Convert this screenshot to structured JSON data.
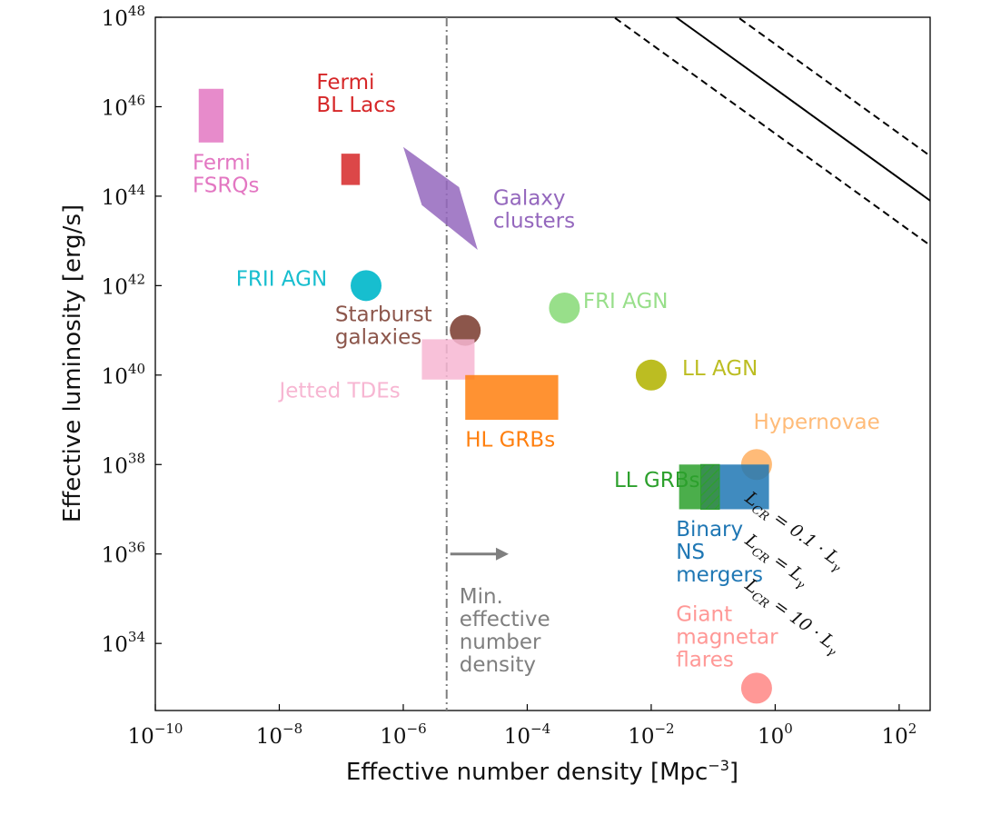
{
  "chart_data": {
    "type": "scatter",
    "xlabel": "Effective number density [Mpc",
    "xlabel_sup": "−3",
    "xlabel_end": "]",
    "ylabel": "Effective luminosity [erg/s]",
    "xscale": "log",
    "yscale": "log",
    "xlim_exp": [
      -10,
      2.5
    ],
    "ylim_exp": [
      32.5,
      48
    ],
    "x_ticks": [
      {
        "base": "10",
        "exp": "−10",
        "value": -10
      },
      {
        "base": "10",
        "exp": "−8",
        "value": -8
      },
      {
        "base": "10",
        "exp": "−6",
        "value": -6
      },
      {
        "base": "10",
        "exp": "−4",
        "value": -4
      },
      {
        "base": "10",
        "exp": "−2",
        "value": -2
      },
      {
        "base": "10",
        "exp": "0",
        "value": 0
      },
      {
        "base": "10",
        "exp": "2",
        "value": 2
      }
    ],
    "y_ticks": [
      {
        "base": "10",
        "exp": "34",
        "value": 34
      },
      {
        "base": "10",
        "exp": "36",
        "value": 36
      },
      {
        "base": "10",
        "exp": "38",
        "value": 38
      },
      {
        "base": "10",
        "exp": "40",
        "value": 40
      },
      {
        "base": "10",
        "exp": "42",
        "value": 42
      },
      {
        "base": "10",
        "exp": "44",
        "value": 44
      },
      {
        "base": "10",
        "exp": "46",
        "value": 46
      },
      {
        "base": "10",
        "exp": "48",
        "value": 48
      }
    ],
    "reference_lines": [
      {
        "label": "L",
        "sub": "CR",
        "rest": " = 0.1 · L",
        "rest_sub": "γ",
        "style": "dashed",
        "log_offset": 47.4,
        "label_at": [
          -0.5,
          37.2
        ]
      },
      {
        "label": "L",
        "sub": "CR",
        "rest": " = L",
        "rest_sub": "γ",
        "style": "solid",
        "log_offset": 46.4,
        "label_at": [
          -0.5,
          36.25
        ]
      },
      {
        "label": "L",
        "sub": "CR",
        "rest": " = 10 · L",
        "rest_sub": "γ",
        "style": "dashed",
        "log_offset": 45.4,
        "label_at": [
          -0.5,
          35.25
        ]
      }
    ],
    "min_density_line": {
      "x_exp": -5.3,
      "label_lines": [
        "Min.",
        "effective",
        "number",
        "density"
      ],
      "arrow_from": -5.3,
      "arrow_to": -4.3,
      "arrow_y": 36,
      "color": "#7f7f7f"
    },
    "sources": [
      {
        "name": "Fermi FSRQs",
        "label_lines": [
          "Fermi",
          "FSRQs"
        ],
        "shape": "rect",
        "x_exp": [
          -9.3,
          -8.9
        ],
        "y_exp": [
          45.2,
          46.4
        ],
        "color": "#e377c2",
        "label_at": [
          -9.4,
          44.6
        ]
      },
      {
        "name": "Fermi BL Lacs",
        "label_lines": [
          "Fermi",
          "BL Lacs"
        ],
        "shape": "rect",
        "x_exp": [
          -7.0,
          -6.7
        ],
        "y_exp": [
          44.25,
          44.95
        ],
        "color": "#d62728",
        "label_at": [
          -7.4,
          46.4
        ]
      },
      {
        "name": "Galaxy clusters",
        "label_lines": [
          "Galaxy",
          "clusters"
        ],
        "shape": "poly",
        "points": [
          [
            -6.0,
            45.1
          ],
          [
            -5.1,
            44.2
          ],
          [
            -4.8,
            42.8
          ],
          [
            -5.7,
            43.8
          ]
        ],
        "color": "#9467bd",
        "label_at": [
          -4.55,
          43.8
        ]
      },
      {
        "name": "FRII AGN",
        "label_lines": [
          "FRII AGN"
        ],
        "shape": "circle",
        "x_exp": -6.6,
        "y_exp": 42.0,
        "color": "#17becf",
        "label_at": [
          -8.7,
          42.0
        ]
      },
      {
        "name": "Starburst galaxies",
        "label_lines": [
          "Starburst",
          "galaxies"
        ],
        "shape": "circle",
        "x_exp": -5.0,
        "y_exp": 41.0,
        "color": "#8c564b",
        "label_at": [
          -7.1,
          41.2
        ]
      },
      {
        "name": "Jetted TDEs",
        "label_lines": [
          "Jetted TDEs"
        ],
        "shape": "rect",
        "x_exp": [
          -5.7,
          -4.85
        ],
        "y_exp": [
          39.9,
          40.8
        ],
        "color": "#f7b6d2",
        "label_at": [
          -8.0,
          39.5
        ]
      },
      {
        "name": "FRI AGN",
        "label_lines": [
          "FRI AGN"
        ],
        "shape": "circle",
        "x_exp": -3.4,
        "y_exp": 41.5,
        "color": "#98df8a",
        "label_at": [
          -3.1,
          41.5
        ]
      },
      {
        "name": "HL GRBs",
        "label_lines": [
          "HL GRBs"
        ],
        "shape": "rect",
        "x_exp": [
          -5.0,
          -3.5
        ],
        "y_exp": [
          39.0,
          40.0
        ],
        "color": "#ff7f0e",
        "label_at": [
          -5.0,
          38.4
        ]
      },
      {
        "name": "LL AGN",
        "label_lines": [
          "LL AGN"
        ],
        "shape": "circle",
        "x_exp": -2.0,
        "y_exp": 40.0,
        "color": "#bcbd22",
        "label_at": [
          -1.5,
          40.0
        ]
      },
      {
        "name": "Hypernovae",
        "label_lines": [
          "Hypernovae"
        ],
        "shape": "circle",
        "x_exp": -0.3,
        "y_exp": 38.0,
        "color": "#ffbb78",
        "label_at": [
          -0.35,
          38.8
        ]
      },
      {
        "name": "LL GRBs",
        "label_lines": [
          "LL GRBs"
        ],
        "shape": "rect",
        "x_exp": [
          -1.55,
          -0.9
        ],
        "y_exp": [
          37.0,
          38.0
        ],
        "color": "#2ca02c",
        "label_at": [
          -2.6,
          37.5
        ]
      },
      {
        "name": "Binary NS mergers",
        "label_lines": [
          "Binary",
          "NS",
          "mergers"
        ],
        "shape": "rect",
        "x_exp": [
          -1.2,
          -0.1
        ],
        "y_exp": [
          37.0,
          38.0
        ],
        "color": "#1f77b4",
        "label_at": [
          -1.6,
          36.4
        ]
      },
      {
        "name": "Giant magnetar flares",
        "label_lines": [
          "Giant",
          "magnetar",
          "flares"
        ],
        "shape": "circle",
        "x_exp": -0.3,
        "y_exp": 33.0,
        "color": "#ff9896",
        "label_at": [
          -1.6,
          34.5
        ]
      }
    ],
    "grid": false
  }
}
